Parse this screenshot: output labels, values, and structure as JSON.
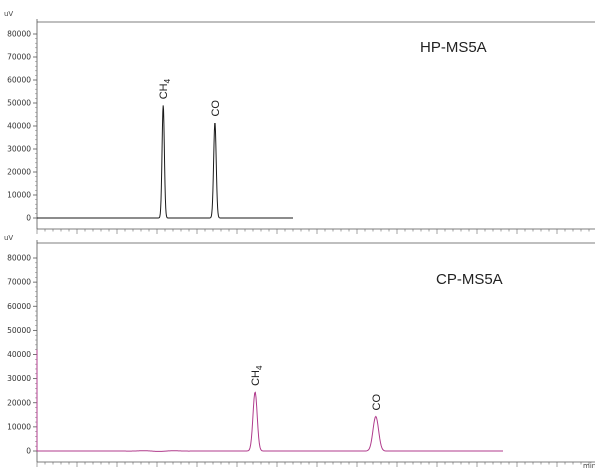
{
  "chart_data": [
    {
      "type": "line",
      "title": "HP-MS5A",
      "ylabel": "uV",
      "xlabel": "",
      "x_unit_label": "",
      "ylim": [
        -1500,
        85000
      ],
      "yticks": [
        0,
        10000,
        20000,
        30000,
        40000,
        50000,
        60000,
        70000,
        80000
      ],
      "grid": false,
      "line_color": "#1a1a1a",
      "trace_range": [
        0,
        1
      ],
      "baseline": 0,
      "peaks": [
        {
          "label": "CH4",
          "label_main": "CH",
          "label_sub": "4",
          "position": 0.493,
          "height": 49000,
          "width": 0.0045
        },
        {
          "label": "CO",
          "label_main": "CO",
          "label_sub": "",
          "position": 0.695,
          "height": 41500,
          "width": 0.005
        }
      ]
    },
    {
      "type": "line",
      "title": "CP-MS5A",
      "ylabel": "uV",
      "xlabel": "min",
      "x_unit_label": "min",
      "ylim": [
        -1500,
        85000
      ],
      "yticks": [
        0,
        10000,
        20000,
        30000,
        40000,
        50000,
        60000,
        70000,
        80000
      ],
      "grid": false,
      "line_color": "#b03b8c",
      "trace_range": [
        0,
        1
      ],
      "baseline": 0,
      "peaks": [
        {
          "label": "CH4",
          "label_main": "CH",
          "label_sub": "4",
          "position": 0.468,
          "height": 24500,
          "width": 0.0045
        },
        {
          "label": "CO",
          "label_main": "CO",
          "label_sub": "",
          "position": 0.727,
          "height": 14300,
          "width": 0.006
        }
      ]
    }
  ]
}
